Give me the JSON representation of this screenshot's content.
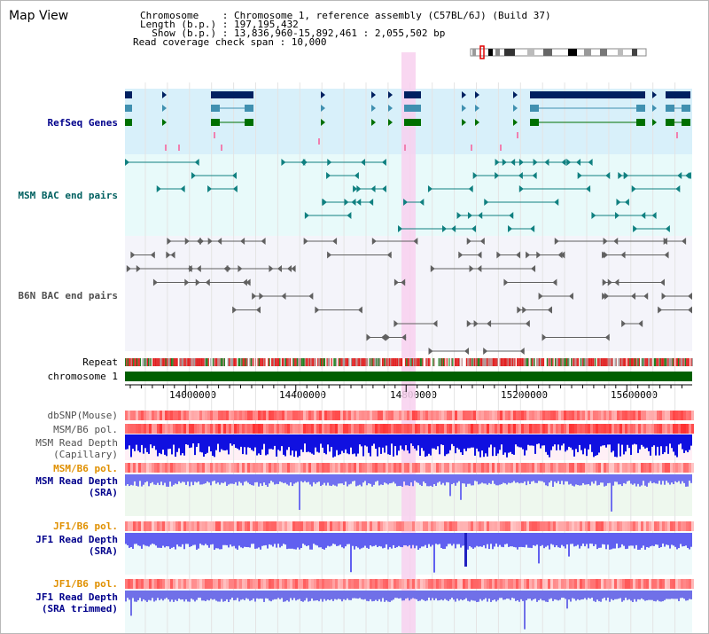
{
  "header": {
    "title": "Map View",
    "chromosome_line": "Chromosome    : Chromosome 1, reference assembly (C57BL/6J) (Build 37)",
    "length_line": "Length (b.p.) : 197,195,432",
    "show_line": "  Show (b.p.) : 13,836,960-15,892,461 : 2,055,502 bp",
    "coverage_line": "Read coverage check span : 10,000"
  },
  "tracks": {
    "refseq": "RefSeq Genes",
    "msm_bac": "MSM BAC end pairs",
    "b6n_bac": "B6N BAC end pairs",
    "repeat": "Repeat",
    "chromosome": "chromosome 1",
    "dbsnp": "dbSNP(Mouse)",
    "msm_b6_pol_1": "MSM/B6 pol.",
    "msm_read_depth_cap_1": "MSM Read Depth",
    "msm_read_depth_cap_2": "(Capillary)",
    "msm_b6_pol_2": "MSM/B6 pol.",
    "msm_read_depth_sra_1": "MSM Read Depth",
    "msm_read_depth_sra_2": "(SRA)",
    "jf1_b6_pol_1": "JF1/B6 pol.",
    "jf1_read_depth_sra_1": "JF1 Read Depth",
    "jf1_read_depth_sra_2": "(SRA)",
    "jf1_b6_pol_2": "JF1/B6 pol.",
    "jf1_read_depth_trim_1": "JF1 Read Depth",
    "jf1_read_depth_trim_2": "(SRA trimmed)"
  },
  "axis": {
    "ticks": [
      "14000000",
      "14400000",
      "14800000",
      "15200000",
      "15600000"
    ]
  },
  "colors": {
    "refseq_bg": "#d8f0fa",
    "bac_bg": "#e8fafa",
    "highlight": "#f8d0ee",
    "gene_dark": "#002060",
    "gene_mid": "#4090b0",
    "gene_green": "#007000",
    "msm_line": "#108080",
    "b6n_line": "#606060",
    "chrom_bar": "#006000",
    "label_blue": "#00008b",
    "label_teal": "#006060",
    "label_orange": "#e09000"
  }
}
